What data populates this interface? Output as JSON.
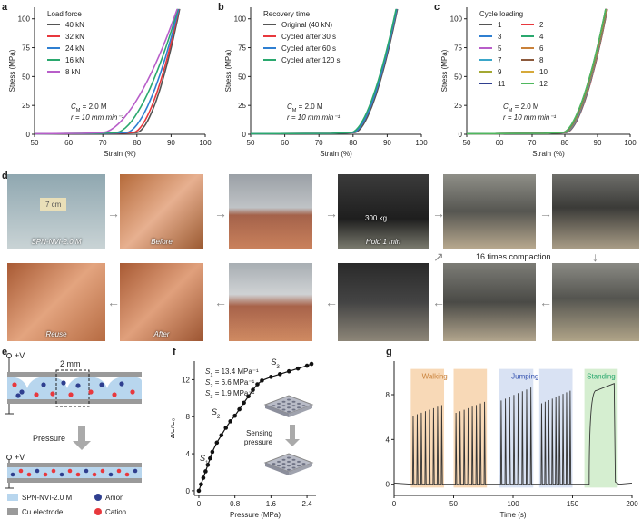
{
  "panels": {
    "a": "a",
    "b": "b",
    "c": "c",
    "d": "d",
    "e": "e",
    "f": "f",
    "g": "g"
  },
  "colors": {
    "black": "#555555",
    "red": "#e8383d",
    "blue": "#2f7fd1",
    "green": "#2aa86e",
    "purple": "#b85ec9",
    "orange": "#c9813a",
    "navy": "#2f3f8f",
    "walk": "#f8d9b7",
    "jump": "#d9e2f3",
    "stand": "#d5eed0"
  },
  "chart_data": [
    {
      "id": "a",
      "type": "line",
      "xlabel": "Strain (%)",
      "ylabel": "Stress (MPa)",
      "xlim": [
        50,
        100
      ],
      "ylim": [
        0,
        110
      ],
      "xticks": [
        50,
        60,
        70,
        80,
        90,
        100
      ],
      "yticks": [
        0,
        25,
        50,
        75,
        100
      ],
      "legend_title": "Load force",
      "annotation_1": "C",
      "annotation_1_sub": "M",
      "annotation_1_rest": " = 2.0 M",
      "annotation_2": "r = 10 mm min⁻¹",
      "series": [
        {
          "name": "40 kN",
          "color": "#555555",
          "onset": 80,
          "end": 92.5
        },
        {
          "name": "32 kN",
          "color": "#e8383d",
          "onset": 79,
          "end": 92.3
        },
        {
          "name": "24 kN",
          "color": "#2f7fd1",
          "onset": 77,
          "end": 92.2
        },
        {
          "name": "16 kN",
          "color": "#2aa86e",
          "onset": 74,
          "end": 92.0
        },
        {
          "name": "8 kN",
          "color": "#b85ec9",
          "onset": 70,
          "end": 91.8
        }
      ]
    },
    {
      "id": "b",
      "type": "line",
      "xlabel": "Strain (%)",
      "ylabel": "Stress (MPa)",
      "xlim": [
        50,
        100
      ],
      "ylim": [
        0,
        110
      ],
      "xticks": [
        50,
        60,
        70,
        80,
        90,
        100
      ],
      "yticks": [
        0,
        25,
        50,
        75,
        100
      ],
      "legend_title": "Recovery time",
      "annotation_1": "C",
      "annotation_1_sub": "M",
      "annotation_1_rest": " = 2.0 M",
      "annotation_2": "r = 10 mm min⁻¹",
      "series": [
        {
          "name": "Original (40 kN)",
          "color": "#555555",
          "onset": 80.5,
          "end": 93.0
        },
        {
          "name": "Cycled after 30 s",
          "color": "#e8383d",
          "onset": 80.0,
          "end": 92.8
        },
        {
          "name": "Cycled after 60 s",
          "color": "#2f7fd1",
          "onset": 80.0,
          "end": 92.8
        },
        {
          "name": "Cycled after 120 s",
          "color": "#2aa86e",
          "onset": 79.5,
          "end": 92.6
        }
      ]
    },
    {
      "id": "c",
      "type": "line",
      "xlabel": "Strain (%)",
      "ylabel": "Stress (MPa)",
      "xlim": [
        50,
        100
      ],
      "ylim": [
        0,
        110
      ],
      "xticks": [
        50,
        60,
        70,
        80,
        90,
        100
      ],
      "yticks": [
        0,
        25,
        50,
        75,
        100
      ],
      "legend_title": "Cycle loading",
      "annotation_1": "C",
      "annotation_1_sub": "M",
      "annotation_1_rest": " = 2.0 M",
      "annotation_2": "r = 10 mm min⁻¹",
      "series": [
        {
          "name": "1",
          "color": "#555555",
          "onset": 80.5,
          "end": 93.0
        },
        {
          "name": "2",
          "color": "#e8383d",
          "onset": 80.4,
          "end": 93.0
        },
        {
          "name": "3",
          "color": "#2f7fd1",
          "onset": 80.3,
          "end": 92.9
        },
        {
          "name": "4",
          "color": "#2aa86e",
          "onset": 80.2,
          "end": 92.9
        },
        {
          "name": "5",
          "color": "#b85ec9",
          "onset": 80.1,
          "end": 92.8
        },
        {
          "name": "6",
          "color": "#c9813a",
          "onset": 80.0,
          "end": 92.8
        },
        {
          "name": "7",
          "color": "#3aa6c9",
          "onset": 79.9,
          "end": 92.7
        },
        {
          "name": "8",
          "color": "#8c5a3c",
          "onset": 79.8,
          "end": 92.7
        },
        {
          "name": "9",
          "color": "#a3a832",
          "onset": 79.7,
          "end": 92.6
        },
        {
          "name": "10",
          "color": "#d6a93a",
          "onset": 79.6,
          "end": 92.6
        },
        {
          "name": "11",
          "color": "#2f3f8f",
          "onset": 79.5,
          "end": 92.5
        },
        {
          "name": "12",
          "color": "#4fb85e",
          "onset": 79.4,
          "end": 92.5
        }
      ]
    },
    {
      "id": "f",
      "type": "line",
      "xlabel": "Pressure (MPa)",
      "ylabel": "ΔC/C₀",
      "xlim": [
        -0.1,
        2.6
      ],
      "ylim": [
        -0.5,
        14
      ],
      "xticks": [
        0,
        0.8,
        1.6,
        2.4
      ],
      "xtick_labels": [
        "0",
        "0.8",
        "1.6",
        "2.4"
      ],
      "yticks": [
        0,
        4,
        8,
        12
      ],
      "x": [
        0,
        0.05,
        0.1,
        0.15,
        0.2,
        0.25,
        0.3,
        0.4,
        0.5,
        0.6,
        0.7,
        0.8,
        0.9,
        1.0,
        1.1,
        1.2,
        1.3,
        1.4,
        1.6,
        1.8,
        2.0,
        2.2,
        2.4,
        2.5
      ],
      "y": [
        0,
        0.7,
        1.4,
        2.1,
        2.8,
        3.5,
        4.2,
        5.2,
        6.0,
        6.8,
        7.5,
        8.1,
        8.8,
        9.5,
        10.2,
        10.9,
        11.5,
        11.9,
        12.3,
        12.6,
        12.9,
        13.2,
        13.5,
        13.7
      ],
      "legend": {
        "s1_sym": "S",
        "s1_sub": "1",
        "s1_val": " = 13.4 MPa⁻¹",
        "s2_sym": "S",
        "s2_sub": "2",
        "s2_val": " = 6.6 MPa⁻¹",
        "s3_sym": "S",
        "s3_sub": "3",
        "s3_val": " = 1.9 MPa⁻¹"
      },
      "region_labels": {
        "s1": "S",
        "s1_sub": "1",
        "s2": "S",
        "s2_sub": "2",
        "s3": "S",
        "s3_sub": "3"
      },
      "inset_caption_1": "Sensing",
      "inset_caption_2": "pressure"
    },
    {
      "id": "g",
      "type": "line",
      "xlabel": "Time (s)",
      "ylabel": "ΔC/C₀",
      "xlim": [
        0,
        200
      ],
      "ylim": [
        -1,
        11
      ],
      "xticks": [
        0,
        50,
        100,
        150,
        200
      ],
      "yticks": [
        0,
        4,
        8
      ],
      "bands": [
        {
          "label": "Walking",
          "color": "#f8d9b7",
          "text_color": "#c9813a",
          "start": 14,
          "end": 42,
          "peak": 7.2,
          "pulses": 8,
          "pulse_color": "#6b4a2a"
        },
        {
          "label": "",
          "color": "#f8d9b7",
          "text_color": "#c9813a",
          "start": 50,
          "end": 78,
          "peak": 7.5,
          "pulses": 8,
          "pulse_color": "#6b4a2a"
        },
        {
          "label": "Jumping",
          "color": "#d9e2f3",
          "text_color": "#3553b0",
          "start": 88,
          "end": 117,
          "peak": 8.8,
          "pulses": 8,
          "pulse_color": "#3a3f55"
        },
        {
          "label": "",
          "color": "#d9e2f3",
          "text_color": "#3553b0",
          "start": 122,
          "end": 150,
          "peak": 8.5,
          "pulses": 9,
          "pulse_color": "#3a3f55"
        },
        {
          "label": "Standing",
          "color": "#d5eed0",
          "text_color": "#2aa86e",
          "start": 160,
          "end": 188,
          "peak": 9.0,
          "pulses": 0,
          "pulse_color": "#2a7a3a"
        }
      ]
    }
  ],
  "panel_d": {
    "photos": [
      {
        "caption": "SPN-NVI-2.0 M",
        "label_top": "7 cm"
      },
      {
        "caption": "Before"
      },
      {
        "caption": ""
      },
      {
        "caption": "Hold 1 min",
        "label_top": "300 kg"
      },
      {
        "caption": ""
      },
      {
        "caption": ""
      },
      {
        "caption": "Reuse"
      },
      {
        "caption": "After"
      },
      {
        "caption": ""
      },
      {
        "caption": ""
      },
      {
        "caption": ""
      },
      {
        "caption": ""
      }
    ],
    "repeat_label": "16 times compaction"
  },
  "panel_e": {
    "voltage_label": "+V",
    "gap_label": "2 mm",
    "pressure_label": "Pressure",
    "voltage_label_2": "+V",
    "legend_material": "SPN-NVI-2.0 M",
    "legend_electrode": "Cu electrode",
    "legend_anion": "Anion",
    "legend_cation": "Cation"
  }
}
